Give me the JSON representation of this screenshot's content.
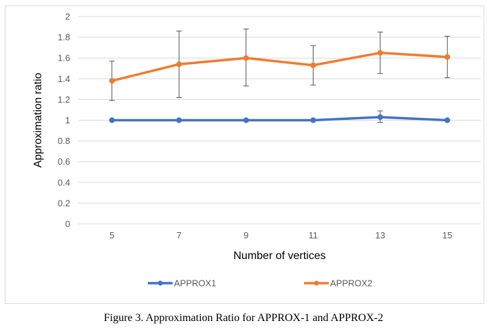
{
  "chart_data": {
    "type": "line",
    "x": [
      5,
      7,
      9,
      11,
      13,
      15
    ],
    "categories": [
      "5",
      "7",
      "9",
      "11",
      "13",
      "15"
    ],
    "xlabel": "Number of vertices",
    "ylabel": "Approximation ratio",
    "ylim": [
      0,
      2
    ],
    "yticks": [
      "0",
      "0.2",
      "0.4",
      "0.6",
      "0.8",
      "1",
      "1.2",
      "1.4",
      "1.6",
      "1.8",
      "2"
    ],
    "grid": true,
    "legend_position": "bottom",
    "series": [
      {
        "name": "APPROX1",
        "color": "#4472c4",
        "values": [
          1.0,
          1.0,
          1.0,
          1.0,
          1.03,
          1.0
        ],
        "error_low": [
          null,
          null,
          null,
          null,
          0.98,
          null
        ],
        "error_high": [
          null,
          null,
          null,
          null,
          1.09,
          null
        ]
      },
      {
        "name": "APPROX2",
        "color": "#ed7d31",
        "values": [
          1.38,
          1.54,
          1.6,
          1.53,
          1.65,
          1.61
        ],
        "error_low": [
          1.19,
          1.22,
          1.33,
          1.34,
          1.45,
          1.41
        ],
        "error_high": [
          1.57,
          1.86,
          1.88,
          1.72,
          1.85,
          1.81
        ]
      }
    ]
  },
  "caption": "Figure 3. Approximation Ratio for APPROX-1 and APPROX-2"
}
